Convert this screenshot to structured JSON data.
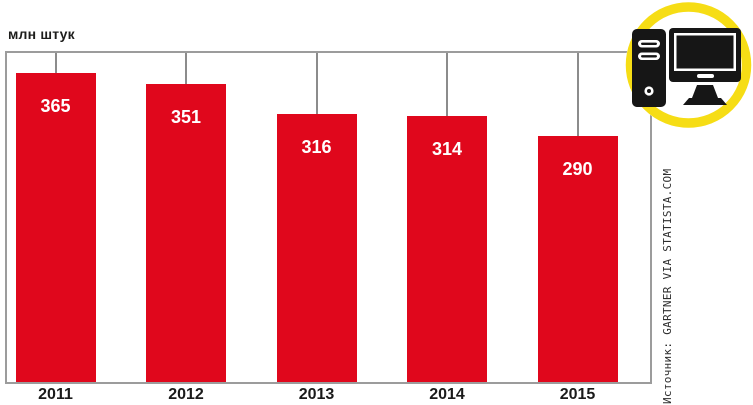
{
  "chart_data": {
    "type": "bar",
    "title": "",
    "unit_label": "млн штук",
    "categories": [
      "2011",
      "2012",
      "2013",
      "2014",
      "2015"
    ],
    "values": [
      365,
      351,
      316,
      314,
      290
    ],
    "xlabel": "",
    "ylabel": "млн штук",
    "ylim": [
      0,
      388
    ],
    "grid": false,
    "legend": false,
    "bar_color": "#e0071c",
    "value_label_color": "#ffffff",
    "axis_color": "#9c9c9c",
    "source_credit": "Источник: GARTNER VIA STATISTA.COM"
  },
  "icon": {
    "name": "desktop-computer-icon",
    "ring_color": "#f6dd15",
    "glyph_color": "#161616"
  }
}
